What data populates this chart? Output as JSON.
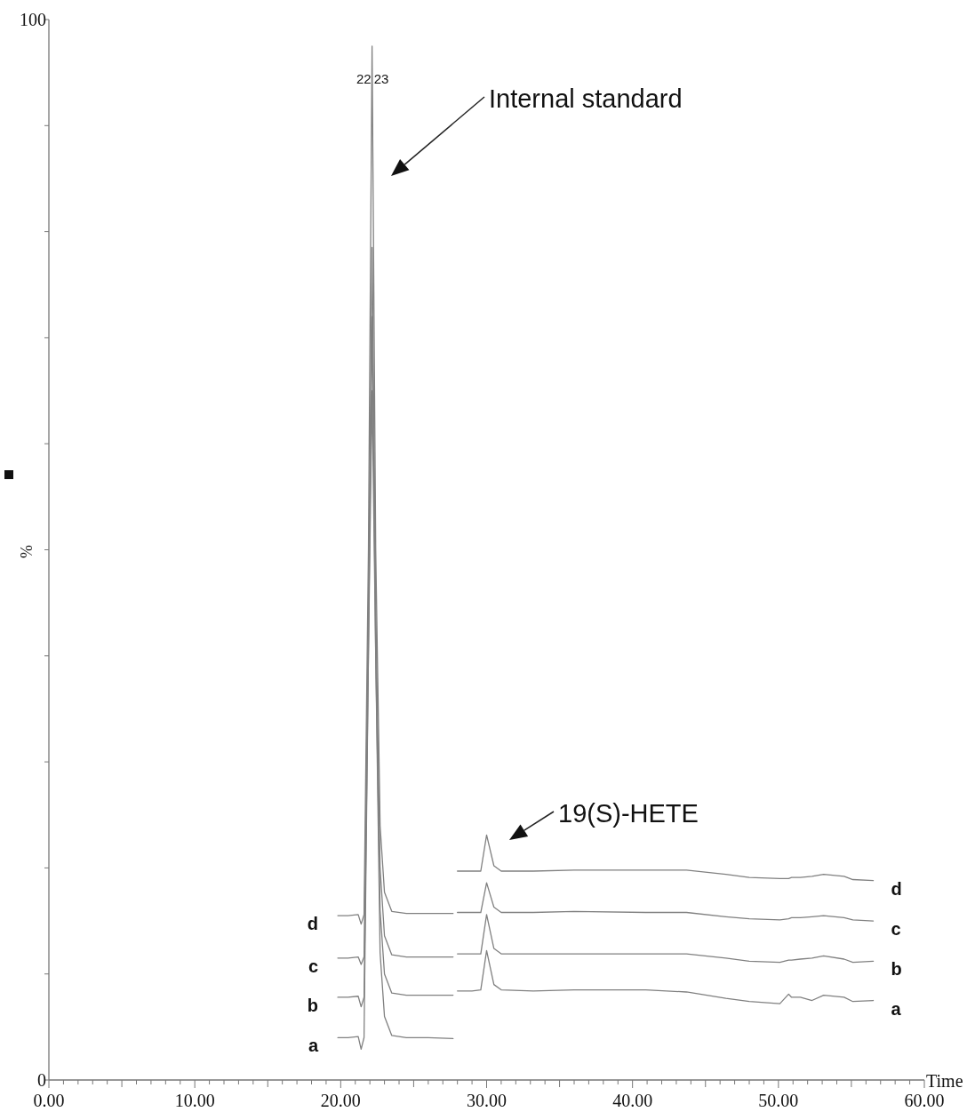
{
  "chart_data": {
    "type": "line",
    "xlabel": "Time",
    "ylabel": "%",
    "xlim": [
      0,
      60
    ],
    "ylim": [
      0,
      100
    ],
    "xticks": [
      {
        "value": 0,
        "label": "0.00"
      },
      {
        "value": 1,
        "label": null
      },
      {
        "value": 2,
        "label": null
      },
      {
        "value": 3,
        "label": null
      },
      {
        "value": 4,
        "label": null
      },
      {
        "value": 5,
        "label": null
      },
      {
        "value": 6,
        "label": null
      },
      {
        "value": 7,
        "label": null
      },
      {
        "value": 8,
        "label": null
      },
      {
        "value": 9,
        "label": null
      },
      {
        "value": 10,
        "label": "10.00"
      },
      {
        "value": 11,
        "label": null
      },
      {
        "value": 12,
        "label": null
      },
      {
        "value": 13,
        "label": null
      },
      {
        "value": 14,
        "label": null
      },
      {
        "value": 15,
        "label": null
      },
      {
        "value": 16,
        "label": null
      },
      {
        "value": 17,
        "label": null
      },
      {
        "value": 18,
        "label": null
      },
      {
        "value": 19,
        "label": null
      },
      {
        "value": 20,
        "label": "20.00"
      },
      {
        "value": 21,
        "label": null
      },
      {
        "value": 22,
        "label": null
      },
      {
        "value": 23,
        "label": null
      },
      {
        "value": 24,
        "label": null
      },
      {
        "value": 25,
        "label": null
      },
      {
        "value": 26,
        "label": null
      },
      {
        "value": 27,
        "label": null
      },
      {
        "value": 28,
        "label": null
      },
      {
        "value": 29,
        "label": null
      },
      {
        "value": 30,
        "label": "30.00"
      },
      {
        "value": 31,
        "label": null
      },
      {
        "value": 32,
        "label": null
      },
      {
        "value": 33,
        "label": null
      },
      {
        "value": 34,
        "label": null
      },
      {
        "value": 35,
        "label": null
      },
      {
        "value": 36,
        "label": null
      },
      {
        "value": 37,
        "label": null
      },
      {
        "value": 38,
        "label": null
      },
      {
        "value": 39,
        "label": null
      },
      {
        "value": 40,
        "label": "40.00"
      },
      {
        "value": 41,
        "label": null
      },
      {
        "value": 42,
        "label": null
      },
      {
        "value": 43,
        "label": null
      },
      {
        "value": 44,
        "label": null
      },
      {
        "value": 45,
        "label": null
      },
      {
        "value": 46,
        "label": null
      },
      {
        "value": 47,
        "label": null
      },
      {
        "value": 48,
        "label": null
      },
      {
        "value": 49,
        "label": null
      },
      {
        "value": 50,
        "label": "50.00"
      },
      {
        "value": 51,
        "label": null
      },
      {
        "value": 52,
        "label": null
      },
      {
        "value": 53,
        "label": null
      },
      {
        "value": 54,
        "label": null
      },
      {
        "value": 55,
        "label": null
      },
      {
        "value": 56,
        "label": null
      },
      {
        "value": 57,
        "label": null
      },
      {
        "value": 58,
        "label": null
      },
      {
        "value": 59,
        "label": null
      },
      {
        "value": 60,
        "label": "60.00"
      }
    ],
    "yticks": [
      0,
      {
        "value": 10,
        "label": null
      },
      {
        "value": 20,
        "label": null
      },
      {
        "value": 30,
        "label": null
      },
      {
        "value": 40,
        "label": null
      },
      {
        "value": 50,
        "label": null
      },
      {
        "value": 60,
        "label": null
      },
      {
        "value": 70,
        "label": null
      },
      {
        "value": 80,
        "label": null
      },
      {
        "value": 90,
        "label": null
      },
      100
    ],
    "annotations": [
      "22",
      "23",
      "Internal standard",
      "19(S)-HETE"
    ],
    "series": [
      {
        "name": "a",
        "color": "#808080",
        "x": [
          19.8,
          20.5,
          21.2,
          21.4,
          21.6,
          21.9,
          22.15,
          22.4,
          22.7,
          23.0,
          23.5,
          24.5,
          26,
          27.7,
          27.85,
          28.0,
          29.0,
          29.6,
          30.0,
          30.5,
          31.0,
          33.2,
          36,
          40.9,
          43.7,
          46.4,
          48,
          50.1,
          50.7,
          50.9,
          51.5,
          52.3,
          53.1,
          54.5,
          55.1,
          56.5
        ],
        "values": [
          4.0,
          4.0,
          4.1,
          2.9,
          4.0,
          40,
          65,
          40,
          12,
          6,
          4.2,
          4.0,
          4.0,
          3.9,
          null,
          8.4,
          8.4,
          8.5,
          12.2,
          9.0,
          8.5,
          8.4,
          8.5,
          8.5,
          8.3,
          7.7,
          7.4,
          7.2,
          8.1,
          7.8,
          7.8,
          7.5,
          8.0,
          7.8,
          7.4,
          7.5
        ]
      },
      {
        "name": "b",
        "color": "#808080",
        "x": [
          19.8,
          20.5,
          21.2,
          21.4,
          21.6,
          21.9,
          22.15,
          22.4,
          22.7,
          23.0,
          23.5,
          24.5,
          26,
          27.7,
          27.85,
          28.0,
          29.0,
          29.6,
          30.0,
          30.5,
          31.0,
          33.2,
          36,
          40.9,
          43.7,
          46.4,
          48,
          50.1,
          50.7,
          50.9,
          51.5,
          52.3,
          53.1,
          54.5,
          55.1,
          56.5
        ],
        "values": [
          7.8,
          7.8,
          7.9,
          6.9,
          7.8,
          40,
          72,
          40,
          16,
          10,
          8.2,
          8.0,
          8.0,
          8.0,
          null,
          11.9,
          11.9,
          11.9,
          15.6,
          12.4,
          11.9,
          11.9,
          11.9,
          11.9,
          11.9,
          11.5,
          11.2,
          11.1,
          11.3,
          11.3,
          11.4,
          11.5,
          11.7,
          11.4,
          11.1,
          11.2
        ]
      },
      {
        "name": "c",
        "color": "#808080",
        "x": [
          19.8,
          20.5,
          21.2,
          21.4,
          21.6,
          21.9,
          22.15,
          22.4,
          22.7,
          23.0,
          23.5,
          24.5,
          26,
          27.7,
          27.85,
          28.0,
          29.0,
          29.6,
          30.0,
          30.5,
          31.0,
          33.2,
          36,
          40.9,
          43.7,
          46.4,
          48,
          50.1,
          50.7,
          50.9,
          51.5,
          52.3,
          53.1,
          54.5,
          55.1,
          56.5
        ],
        "values": [
          11.5,
          11.5,
          11.6,
          10.9,
          11.6,
          45,
          78.5,
          45,
          20,
          13.6,
          11.8,
          11.6,
          11.6,
          11.6,
          null,
          15.8,
          15.8,
          15.8,
          18.6,
          16.3,
          15.8,
          15.8,
          15.9,
          15.8,
          15.8,
          15.4,
          15.2,
          15.1,
          15.2,
          15.3,
          15.3,
          15.4,
          15.5,
          15.3,
          15.1,
          15.0
        ]
      },
      {
        "name": "d",
        "color": "#808080",
        "x": [
          19.8,
          20.5,
          21.2,
          21.4,
          21.6,
          21.9,
          22.15,
          22.4,
          22.7,
          23.0,
          23.5,
          24.5,
          26,
          27.7,
          27.85,
          28.0,
          29.0,
          29.6,
          30.0,
          30.5,
          31.0,
          33.2,
          36,
          40.9,
          43.7,
          46.4,
          48,
          50.1,
          50.7,
          50.9,
          51.5,
          52.3,
          53.1,
          54.5,
          55.1,
          56.5
        ],
        "values": [
          15.5,
          15.5,
          15.6,
          14.7,
          15.6,
          50,
          97.5,
          50,
          24,
          17.7,
          15.9,
          15.7,
          15.7,
          15.7,
          null,
          19.7,
          19.7,
          19.7,
          23.1,
          20.2,
          19.7,
          19.7,
          19.8,
          19.8,
          19.8,
          19.4,
          19.1,
          19.0,
          19.0,
          19.1,
          19.1,
          19.2,
          19.4,
          19.2,
          18.9,
          18.8
        ]
      }
    ]
  }
}
